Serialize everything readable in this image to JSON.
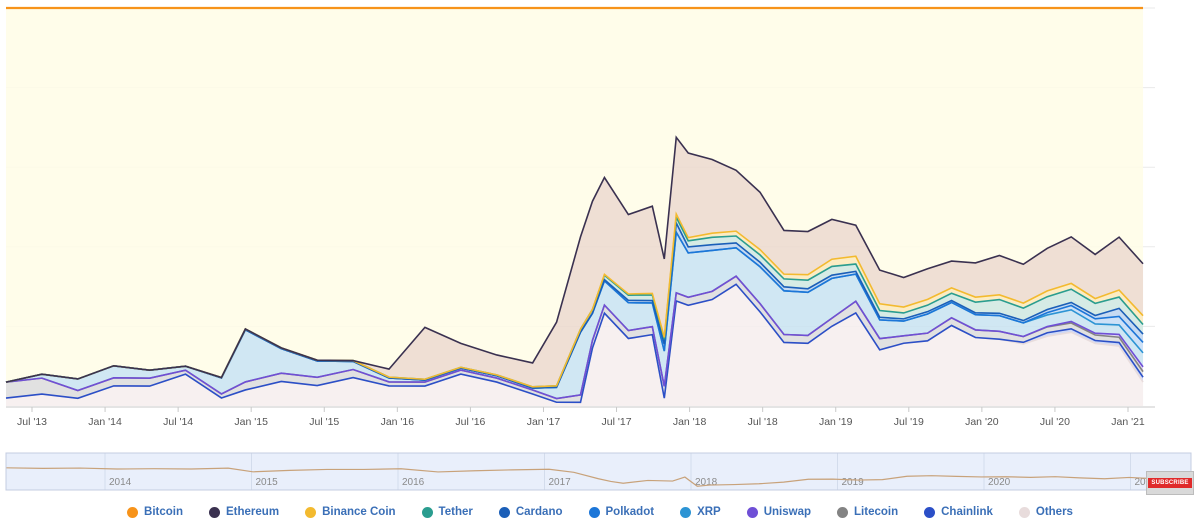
{
  "chart_data": {
    "type": "area",
    "stacking": "percent",
    "ylim": [
      0,
      100
    ],
    "grid": true,
    "legend_placement": "bottom-center",
    "x_ticks": [
      "Jul '13",
      "Jan '14",
      "Jul '14",
      "Jan '15",
      "Jul '15",
      "Jan '16",
      "Jul '16",
      "Jan '17",
      "Jul '17",
      "Jan '18",
      "Jul '18",
      "Jan '19",
      "Jul '19",
      "Jan '20",
      "Jul '20",
      "Jan '21"
    ],
    "x": [
      "2013-05",
      "2013-08",
      "2013-11",
      "2014-02",
      "2014-05",
      "2014-08",
      "2014-11",
      "2015-01",
      "2015-04",
      "2015-07",
      "2015-10",
      "2016-01",
      "2016-04",
      "2016-07",
      "2016-10",
      "2017-01",
      "2017-03",
      "2017-05",
      "2017-06",
      "2017-07",
      "2017-09",
      "2017-11",
      "2017-12",
      "2018-01",
      "2018-02",
      "2018-04",
      "2018-06",
      "2018-08",
      "2018-10",
      "2018-12",
      "2019-02",
      "2019-04",
      "2019-06",
      "2019-08",
      "2019-10",
      "2019-12",
      "2020-02",
      "2020-04",
      "2020-06",
      "2020-08",
      "2020-10",
      "2020-12",
      "2021-02",
      "2021-04"
    ],
    "series": [
      {
        "name": "Bitcoin",
        "color": "#f7931a",
        "fill": "#fffde6",
        "values": [
          94,
          92,
          96,
          89,
          91,
          90,
          92,
          80,
          83,
          86,
          87,
          90,
          80,
          84,
          87,
          89,
          84,
          62,
          50,
          42,
          52,
          50,
          64,
          32,
          36,
          37,
          40,
          45,
          56,
          57,
          53,
          56,
          70,
          73,
          68,
          66,
          67,
          63,
          66,
          62,
          59,
          67,
          65,
          64
        ]
      },
      {
        "name": "Ethereum",
        "color": "#3a3150",
        "fill": "#ecd9cc",
        "values": [
          0,
          0,
          0,
          0,
          0,
          0,
          0,
          0,
          0,
          0,
          0,
          2,
          13,
          6,
          5,
          6,
          17,
          25,
          28,
          24,
          20,
          22,
          20,
          19,
          21,
          18,
          15,
          14,
          11,
          11,
          10,
          8,
          9,
          8,
          8,
          7,
          9,
          10,
          10,
          11,
          12,
          12,
          15,
          13
        ]
      },
      {
        "name": "Binance Coin",
        "color": "#f3ba2f",
        "fill": "#fbe9b8",
        "values": [
          0,
          0,
          0,
          0,
          0,
          0,
          0,
          0,
          0,
          0,
          0,
          0,
          0,
          0,
          0,
          0,
          0,
          0,
          0,
          0.2,
          0.3,
          0.4,
          0.5,
          0.8,
          0.8,
          1.0,
          1.2,
          1.3,
          1.2,
          1.4,
          1.8,
          2.0,
          1.8,
          1.6,
          1.5,
          1.4,
          1.3,
          1.2,
          1.3,
          1.5,
          1.5,
          1.3,
          2.0,
          2.2
        ]
      },
      {
        "name": "Tether",
        "color": "#2a9d8f",
        "fill": "#cfe8e1",
        "values": [
          0,
          0,
          0,
          0,
          0,
          0,
          0.1,
          0.2,
          0.2,
          0.2,
          0.2,
          0.2,
          0.2,
          0.2,
          0.2,
          0.3,
          0.4,
          0.8,
          1.0,
          1.1,
          1.3,
          1.4,
          1.2,
          1.4,
          1.5,
          1.8,
          1.7,
          1.8,
          2.0,
          2.2,
          2.2,
          1.9,
          1.8,
          1.6,
          1.7,
          1.9,
          2.8,
          3.5,
          3.2,
          3.3,
          3.4,
          3.3,
          3.2,
          2.4
        ]
      },
      {
        "name": "Cardano",
        "color": "#1b5fb8",
        "fill": "#bcd3f0",
        "values": [
          0,
          0,
          0,
          0,
          0,
          0,
          0,
          0,
          0,
          0,
          0,
          0,
          0,
          0,
          0,
          0,
          0,
          0,
          0,
          0.3,
          0.6,
          0.6,
          1.8,
          2.3,
          1.5,
          1.4,
          1.2,
          1.1,
          1.0,
          0.9,
          0.8,
          0.7,
          0.7,
          0.6,
          0.6,
          0.5,
          0.5,
          0.6,
          0.6,
          0.8,
          0.8,
          0.9,
          2.3,
          2.1
        ]
      },
      {
        "name": "Polkadot",
        "color": "#1c76d8",
        "fill": "#c4dcf6",
        "values": [
          0,
          0,
          0,
          0,
          0,
          0,
          0,
          0,
          0,
          0,
          0,
          0,
          0,
          0,
          0,
          0,
          0,
          0,
          0,
          0,
          0,
          0,
          0,
          0,
          0,
          0,
          0,
          0,
          0,
          0,
          0,
          0,
          0,
          0,
          0,
          0,
          0,
          0,
          0,
          0.6,
          1.1,
          1.4,
          2.4,
          2.6
        ]
      },
      {
        "name": "XRP",
        "color": "#2c94d4",
        "fill": "#c8e3f1",
        "values": [
          0,
          1,
          3,
          3,
          2,
          1,
          4,
          13,
          6,
          4,
          2,
          1,
          0.5,
          0.5,
          0.6,
          0.5,
          3,
          17,
          7,
          6,
          7,
          6,
          9,
          15,
          11,
          10,
          7,
          9,
          11,
          11,
          10,
          7,
          5,
          4,
          5,
          4,
          4,
          4,
          3.5,
          3,
          3,
          2.5,
          2.7,
          3.5
        ]
      },
      {
        "name": "Uniswap",
        "color": "#6f4fd6",
        "fill": "#ddd3f6",
        "values": [
          0,
          0,
          0,
          0,
          0,
          0,
          0,
          0,
          0,
          0,
          0,
          0,
          0,
          0,
          0,
          0,
          0,
          0,
          0,
          0,
          0,
          0,
          0,
          0,
          0,
          0,
          0,
          0,
          0,
          0,
          0,
          0,
          0,
          0,
          0,
          0,
          0,
          0,
          0,
          0.1,
          0.4,
          0.5,
          0.8,
          1.2
        ]
      },
      {
        "name": "Litecoin",
        "color": "#838383",
        "fill": "#dcdcdc",
        "values": [
          4,
          4,
          2,
          2,
          2,
          1,
          1,
          2,
          2,
          2,
          2,
          1,
          1,
          1,
          1,
          1,
          1,
          2,
          2,
          2,
          2,
          2,
          3,
          2,
          2,
          2,
          2,
          2,
          2,
          2,
          2,
          3,
          3,
          2,
          2,
          2,
          2,
          2,
          1.5,
          1.5,
          1.5,
          1.5,
          1.5,
          1.4
        ]
      },
      {
        "name": "Chainlink",
        "color": "#2b4fc7",
        "fill": "#c6d1f4",
        "values": [
          0,
          0,
          0,
          0,
          0,
          0,
          0,
          0,
          0,
          0,
          0,
          0,
          0,
          0,
          0,
          0,
          0,
          0,
          0,
          0,
          0,
          0,
          0,
          0,
          0,
          0,
          0,
          0,
          0,
          0,
          0,
          0,
          0,
          0,
          0,
          0,
          0,
          0,
          0.4,
          0.9,
          0.9,
          0.8,
          1.0,
          1.2
        ]
      },
      {
        "name": "Others",
        "color": "#e8dcdc",
        "fill": "#f6eded",
        "values": [
          2,
          3,
          2,
          5,
          5,
          8,
          2,
          4,
          6,
          5,
          7,
          5,
          5,
          8,
          6,
          3,
          1,
          1,
          15,
          23,
          17,
          18,
          2,
          26,
          25,
          26,
          30,
          23,
          16,
          16,
          20,
          24,
          15,
          17,
          17,
          21,
          18,
          17,
          16,
          18,
          19,
          17,
          17,
          6
        ]
      }
    ]
  },
  "navigator": {
    "year_labels": [
      "2014",
      "2015",
      "2016",
      "2017",
      "2018",
      "2019",
      "2020",
      "202"
    ]
  },
  "overlay": {
    "subscribe_label": "SUBSCRIBE"
  }
}
